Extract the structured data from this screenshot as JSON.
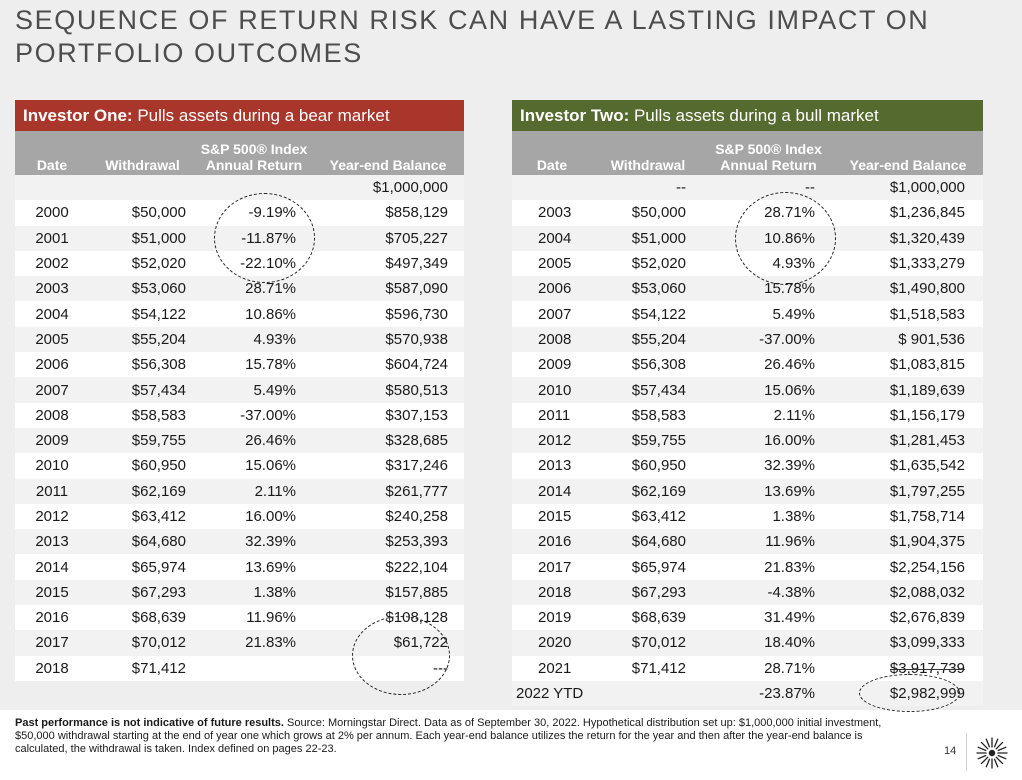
{
  "title": "SEQUENCE OF RETURN RISK CAN HAVE A LASTING IMPACT ON PORTFOLIO OUTCOMES",
  "investor_one": {
    "header_bold": "Investor One:",
    "header_text": " Pulls assets during a bear market",
    "header_color": "#a9362a",
    "columns": [
      "Date",
      "Withdrawal",
      "S&P 500® Index Annual Return",
      "Year-end Balance"
    ],
    "starting_row": {
      "date": "",
      "withdrawal": "",
      "return": "",
      "balance": "$1,000,000"
    },
    "rows": [
      {
        "date": "2000",
        "withdrawal": "$50,000",
        "return": "-9.19%",
        "balance": "$858,129"
      },
      {
        "date": "2001",
        "withdrawal": "$51,000",
        "return": "-11.87%",
        "balance": "$705,227"
      },
      {
        "date": "2002",
        "withdrawal": "$52,020",
        "return": "-22.10%",
        "balance": "$497,349"
      },
      {
        "date": "2003",
        "withdrawal": "$53,060",
        "return": "28.71%",
        "balance": "$587,090"
      },
      {
        "date": "2004",
        "withdrawal": "$54,122",
        "return": "10.86%",
        "balance": "$596,730"
      },
      {
        "date": "2005",
        "withdrawal": "$55,204",
        "return": "4.93%",
        "balance": "$570,938"
      },
      {
        "date": "2006",
        "withdrawal": "$56,308",
        "return": "15.78%",
        "balance": "$604,724"
      },
      {
        "date": "2007",
        "withdrawal": "$57,434",
        "return": "5.49%",
        "balance": "$580,513"
      },
      {
        "date": "2008",
        "withdrawal": "$58,583",
        "return": "-37.00%",
        "balance": "$307,153"
      },
      {
        "date": "2009",
        "withdrawal": "$59,755",
        "return": "26.46%",
        "balance": "$328,685"
      },
      {
        "date": "2010",
        "withdrawal": "$60,950",
        "return": "15.06%",
        "balance": "$317,246"
      },
      {
        "date": "2011",
        "withdrawal": "$62,169",
        "return": "2.11%",
        "balance": "$261,777"
      },
      {
        "date": "2012",
        "withdrawal": "$63,412",
        "return": "16.00%",
        "balance": "$240,258"
      },
      {
        "date": "2013",
        "withdrawal": "$64,680",
        "return": "32.39%",
        "balance": "$253,393"
      },
      {
        "date": "2014",
        "withdrawal": "$65,974",
        "return": "13.69%",
        "balance": "$222,104"
      },
      {
        "date": "2015",
        "withdrawal": "$67,293",
        "return": "1.38%",
        "balance": "$157,885"
      },
      {
        "date": "2016",
        "withdrawal": "$68,639",
        "return": "11.96%",
        "balance": "$108,128"
      },
      {
        "date": "2017",
        "withdrawal": "$70,012",
        "return": "21.83%",
        "balance": "$61,722"
      },
      {
        "date": "2018",
        "withdrawal": "$71,412",
        "return": "",
        "balance": "---"
      }
    ]
  },
  "investor_two": {
    "header_bold": "Investor Two:",
    "header_text": " Pulls assets during a bull market",
    "header_color": "#556a2e",
    "columns": [
      "Date",
      "Withdrawal",
      "S&P 500® Index Annual Return",
      "Year-end Balance"
    ],
    "starting_row": {
      "date": "",
      "withdrawal": "--",
      "return": "--",
      "balance": "$1,000,000"
    },
    "rows": [
      {
        "date": "2003",
        "withdrawal": "$50,000",
        "return": "28.71%",
        "balance": "$1,236,845"
      },
      {
        "date": "2004",
        "withdrawal": "$51,000",
        "return": "10.86%",
        "balance": "$1,320,439"
      },
      {
        "date": "2005",
        "withdrawal": "$52,020",
        "return": "4.93%",
        "balance": "$1,333,279"
      },
      {
        "date": "2006",
        "withdrawal": "$53,060",
        "return": "15.78%",
        "balance": "$1,490,800"
      },
      {
        "date": "2007",
        "withdrawal": "$54,122",
        "return": "5.49%",
        "balance": "$1,518,583"
      },
      {
        "date": "2008",
        "withdrawal": "$55,204",
        "return": "-37.00%",
        "balance": "$ 901,536"
      },
      {
        "date": "2009",
        "withdrawal": "$56,308",
        "return": "26.46%",
        "balance": "$1,083,815"
      },
      {
        "date": "2010",
        "withdrawal": "$57,434",
        "return": "15.06%",
        "balance": "$1,189,639"
      },
      {
        "date": "2011",
        "withdrawal": "$58,583",
        "return": "2.11%",
        "balance": "$1,156,179"
      },
      {
        "date": "2012",
        "withdrawal": "$59,755",
        "return": "16.00%",
        "balance": "$1,281,453"
      },
      {
        "date": "2013",
        "withdrawal": "$60,950",
        "return": "32.39%",
        "balance": "$1,635,542"
      },
      {
        "date": "2014",
        "withdrawal": "$62,169",
        "return": "13.69%",
        "balance": "$1,797,255"
      },
      {
        "date": "2015",
        "withdrawal": "$63,412",
        "return": "1.38%",
        "balance": "$1,758,714"
      },
      {
        "date": "2016",
        "withdrawal": "$64,680",
        "return": "11.96%",
        "balance": "$1,904,375"
      },
      {
        "date": "2017",
        "withdrawal": "$65,974",
        "return": "21.83%",
        "balance": "$2,254,156"
      },
      {
        "date": "2018",
        "withdrawal": "$67,293",
        "return": "-4.38%",
        "balance": "$2,088,032"
      },
      {
        "date": "2019",
        "withdrawal": "$68,639",
        "return": "31.49%",
        "balance": "$2,676,839"
      },
      {
        "date": "2020",
        "withdrawal": "$70,012",
        "return": "18.40%",
        "balance": "$3,099,333"
      },
      {
        "date": "2021",
        "withdrawal": "$71,412",
        "return": "28.71%",
        "balance": "$3,917,739"
      },
      {
        "date": "2022 YTD",
        "withdrawal": "",
        "return": "-23.87%",
        "balance": "$2,982,999"
      }
    ]
  },
  "footnote": {
    "bold": "Past performance is not indicative of future results.",
    "text": " Source: Morningstar Direct. Data as of September 30, 2022. Hypothetical distribution set up: $1,000,000 initial investment, $50,000 withdrawal starting at the end of year one which grows at 2% per annum. Each year-end balance utilizes the return for the year and then after the year-end balance is calculated, the withdrawal is taken. Index defined on pages 22-23."
  },
  "page_number": "14",
  "logo_icon": "starburst-logo-icon"
}
